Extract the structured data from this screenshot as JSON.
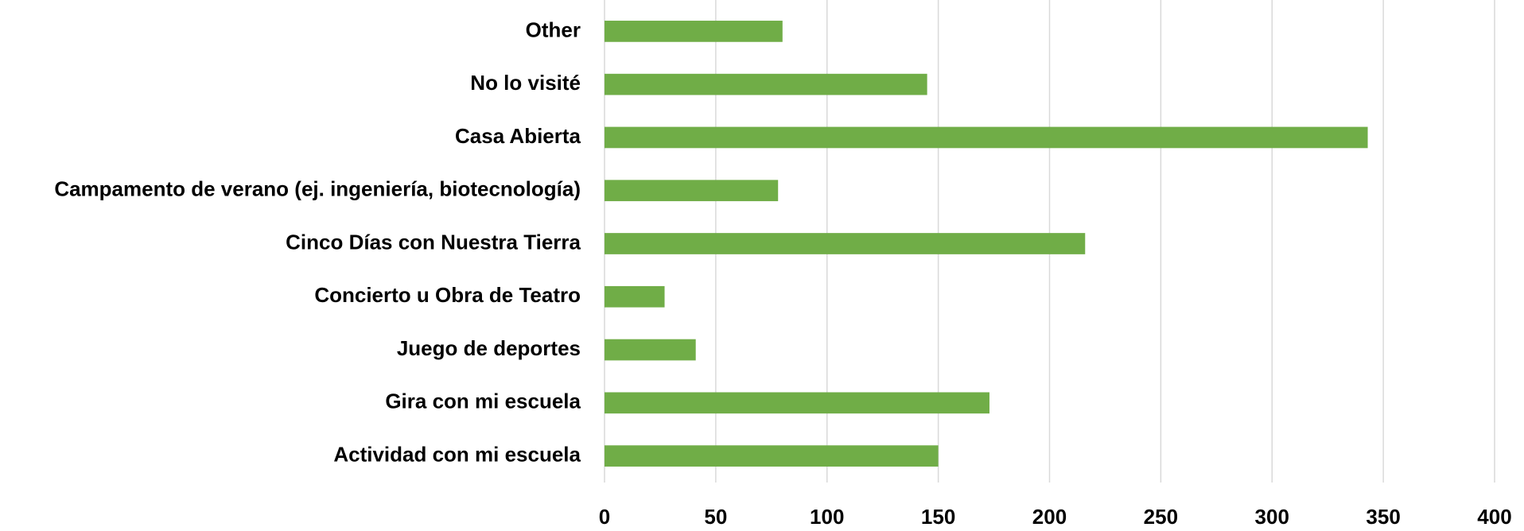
{
  "chart_data": {
    "type": "bar",
    "orientation": "horizontal",
    "categories": [
      "Other",
      "No lo visité",
      "Casa Abierta",
      "Campamento de verano (ej. ingeniería, biotecnología)",
      "Cinco Días con Nuestra Tierra",
      "Concierto u Obra de Teatro",
      "Juego de deportes",
      "Gira con mi escuela",
      "Actividad con mi escuela"
    ],
    "values": [
      80,
      145,
      343,
      78,
      216,
      27,
      41,
      173,
      150
    ],
    "color": "#70ad47",
    "xlim": [
      0,
      400
    ],
    "xticks": [
      0,
      50,
      100,
      150,
      200,
      250,
      300,
      350,
      400
    ],
    "grid": true
  }
}
